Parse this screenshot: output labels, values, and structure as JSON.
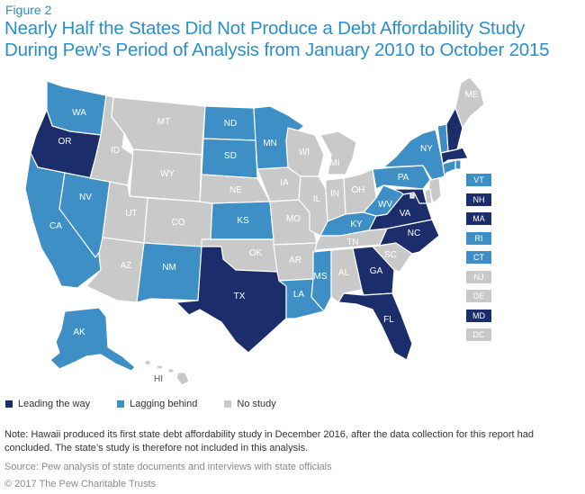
{
  "figure_label": "Figure 2",
  "title_line1": "Nearly Half the States Did Not Produce a Debt Affordability Study",
  "title_line2": "During Pew’s Period of Analysis from January 2010 to October 2015",
  "colors": {
    "leading": "#1c2d6b",
    "lagging": "#3d8fc6",
    "none": "#c9c9c9",
    "title": "#2b8fc9"
  },
  "states": {
    "WA": "lagging",
    "OR": "leading",
    "CA": "lagging",
    "NV": "lagging",
    "ID": "none",
    "MT": "none",
    "WY": "none",
    "UT": "none",
    "CO": "none",
    "AZ": "none",
    "NM": "lagging",
    "ND": "lagging",
    "SD": "lagging",
    "NE": "none",
    "KS": "lagging",
    "OK": "none",
    "TX": "leading",
    "MN": "lagging",
    "IA": "none",
    "MO": "none",
    "AR": "none",
    "LA": "lagging",
    "WI": "none",
    "IL": "none",
    "MI": "none",
    "IN": "none",
    "OH": "none",
    "KY": "lagging",
    "TN": "none",
    "MS": "lagging",
    "AL": "none",
    "GA": "leading",
    "FL": "leading",
    "SC": "none",
    "NC": "leading",
    "VA": "leading",
    "WV": "lagging",
    "PA": "lagging",
    "NY": "lagging",
    "ME": "none",
    "AK": "lagging",
    "HI": "none",
    "VT": "lagging",
    "NH": "leading",
    "MA": "leading",
    "RI": "lagging",
    "CT": "lagging",
    "NJ": "none",
    "DE": "none",
    "MD": "leading",
    "DC": "none"
  },
  "small_states": [
    {
      "abbr": "VT",
      "status": "lagging"
    },
    {
      "abbr": "NH",
      "status": "leading"
    },
    {
      "abbr": "MA",
      "status": "leading"
    },
    {
      "abbr": "RI",
      "status": "lagging"
    },
    {
      "abbr": "CT",
      "status": "lagging"
    },
    {
      "abbr": "NJ",
      "status": "none"
    },
    {
      "abbr": "DE",
      "status": "none"
    },
    {
      "abbr": "MD",
      "status": "leading"
    },
    {
      "abbr": "DC",
      "status": "none"
    }
  ],
  "legend": {
    "leading": "Leading the way",
    "lagging": "Lagging behind",
    "none": "No study"
  },
  "note": "Note: Hawaii produced its first state debt affordability study in December 2016, after the data collection for this report had concluded. The state’s study is therefore not included in this analysis.",
  "source": "Source: Pew analysis of state documents and interviews with state officials",
  "copyright": "© 2017 The Pew Charitable Trusts"
}
